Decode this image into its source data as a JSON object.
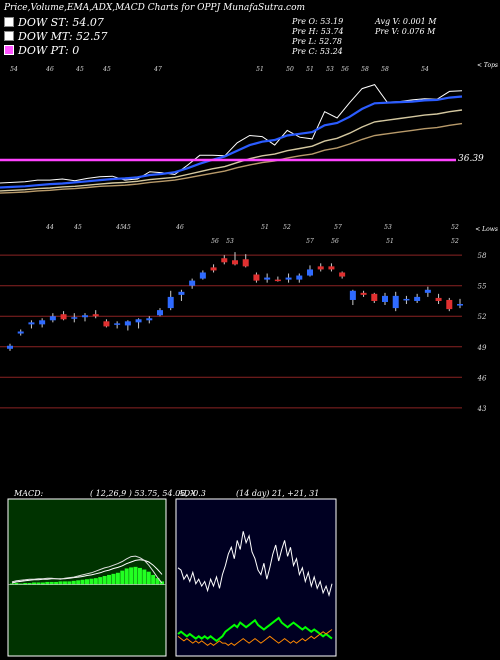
{
  "header": {
    "title": "Price,Volume,EMA,ADX,MACD Charts for OPPJ MunafaSutra.com",
    "dow_st": "DOW ST: 54.07",
    "dow_mt": "DOW MT: 52.57",
    "dow_pt": "DOW PT: 0",
    "pre_o": "Pre   O: 53.19",
    "pre_h": "Pre   H: 53.74",
    "pre_l": "Pre   L: 52.78",
    "pre_c": "Pre   C: 53.24",
    "avg_v": "Avg V: 0.001 M",
    "pre_v": "Pre   V: 0.076  M",
    "colors": {
      "dow_st": "#ffffff",
      "dow_mt": "#ffffff",
      "dow_pt": "#ff55ff"
    }
  },
  "ema_panel": {
    "corner_label": "< Tops",
    "price_label": "36.39",
    "top_labels": [
      "54",
      "46",
      "45",
      "45",
      "47",
      "51",
      "50",
      "51",
      "53",
      "56",
      "58",
      "58",
      "54"
    ],
    "bottom_labels": [
      "44",
      "45",
      "45",
      "45",
      "46",
      "51",
      "52",
      "57",
      "53",
      "52"
    ]
  },
  "price_panel": {
    "corner_label": "< Lows",
    "top_labels": [
      "56",
      "53",
      "57",
      "56",
      "51",
      "52"
    ]
  },
  "macd_panel": {
    "label": "MACD:",
    "params": "( 12,26,9 ) 53.75, 54.05, -0.3"
  },
  "adx_panel": {
    "label": "ADX",
    "params": "(14 day) 21, +21, 31"
  },
  "chart_data": [
    {
      "type": "line",
      "panel": "ema",
      "x_count": 38,
      "series": [
        {
          "values": [
            36.9,
            37,
            37.1,
            37.4,
            37.4,
            37.6,
            37.3,
            37.7,
            38,
            38.1,
            37.4,
            37.6,
            38.9,
            38.7,
            38.4,
            40,
            41.8,
            41.8,
            41.7,
            44,
            45.3,
            45.1,
            43.6,
            46.2,
            45,
            44.7,
            49.5,
            48.4,
            51.1,
            53.6,
            54.3,
            51.2,
            51.3,
            51.6,
            51.8,
            51.7,
            53.1,
            53.2
          ]
        },
        {
          "values": [
            36.1,
            36.2,
            36.3,
            36.5,
            36.7,
            36.8,
            37,
            37.2,
            37.4,
            37.6,
            37.7,
            37.9,
            38.3,
            38.5,
            38.8,
            39.5,
            40.3,
            41,
            41.6,
            42.6,
            43.6,
            44.2,
            44.5,
            45.3,
            45.6,
            45.9,
            47.1,
            47.5,
            48.6,
            50,
            51,
            51.1,
            51.2,
            51.3,
            51.5,
            51.6,
            52,
            52.2
          ]
        },
        {
          "values": [
            35.5,
            35.6,
            35.7,
            35.9,
            36,
            36.2,
            36.3,
            36.5,
            36.7,
            36.9,
            37,
            37.2,
            37.5,
            37.7,
            37.9,
            38.4,
            38.9,
            39.4,
            39.8,
            40.5,
            41.2,
            41.7,
            42,
            42.6,
            43,
            43.4,
            44.3,
            44.8,
            45.7,
            46.8,
            47.7,
            48,
            48.3,
            48.6,
            48.9,
            49.1,
            49.5,
            49.8
          ]
        },
        {
          "values": [
            35.1,
            35.2,
            35.3,
            35.5,
            35.6,
            35.8,
            35.9,
            36.1,
            36.3,
            36.4,
            36.5,
            36.7,
            37,
            37.2,
            37.4,
            37.8,
            38.2,
            38.6,
            39,
            39.6,
            40.1,
            40.5,
            40.8,
            41.3,
            41.7,
            42,
            42.7,
            43.1,
            43.8,
            44.6,
            45.3,
            45.6,
            45.9,
            46.2,
            46.5,
            46.7,
            47.1,
            47.4
          ]
        }
      ]
    },
    {
      "type": "candlestick",
      "panel": "price",
      "ylim": [
        42,
        59
      ],
      "y_ticks": [
        58,
        55,
        52,
        49,
        46,
        43
      ],
      "candles": [
        {
          "o": 48.8,
          "h": 49.3,
          "l": 48.6,
          "c": 49.1
        },
        {
          "o": 50.3,
          "h": 50.7,
          "l": 50.1,
          "c": 50.5
        },
        {
          "o": 51.2,
          "h": 51.6,
          "l": 50.8,
          "c": 51.4
        },
        {
          "o": 51.2,
          "h": 51.8,
          "l": 50.9,
          "c": 51.6
        },
        {
          "o": 51.6,
          "h": 52.3,
          "l": 51.4,
          "c": 52.0
        },
        {
          "o": 52.2,
          "h": 52.5,
          "l": 51.6,
          "c": 51.7
        },
        {
          "o": 51.8,
          "h": 52.3,
          "l": 51.4,
          "c": 51.9
        },
        {
          "o": 51.9,
          "h": 52.3,
          "l": 51.5,
          "c": 52.1
        },
        {
          "o": 52.2,
          "h": 52.6,
          "l": 51.8,
          "c": 52.0
        },
        {
          "o": 51.5,
          "h": 51.7,
          "l": 50.9,
          "c": 51.0
        },
        {
          "o": 51.2,
          "h": 51.5,
          "l": 50.8,
          "c": 51.3
        },
        {
          "o": 51.1,
          "h": 51.6,
          "l": 50.6,
          "c": 51.5
        },
        {
          "o": 51.4,
          "h": 51.8,
          "l": 50.8,
          "c": 51.7
        },
        {
          "o": 51.6,
          "h": 52.0,
          "l": 51.3,
          "c": 51.8
        },
        {
          "o": 52.1,
          "h": 52.8,
          "l": 52.0,
          "c": 52.6
        },
        {
          "o": 52.8,
          "h": 54.5,
          "l": 52.6,
          "c": 53.9
        },
        {
          "o": 54.1,
          "h": 54.6,
          "l": 53.5,
          "c": 54.4
        },
        {
          "o": 55.0,
          "h": 55.7,
          "l": 54.7,
          "c": 55.5
        },
        {
          "o": 55.7,
          "h": 56.5,
          "l": 55.6,
          "c": 56.3
        },
        {
          "o": 56.8,
          "h": 57.1,
          "l": 56.3,
          "c": 56.5
        },
        {
          "o": 57.7,
          "h": 58.0,
          "l": 57.1,
          "c": 57.3
        },
        {
          "o": 57.5,
          "h": 58.3,
          "l": 57.0,
          "c": 57.1
        },
        {
          "o": 57.6,
          "h": 58.1,
          "l": 56.8,
          "c": 56.9
        },
        {
          "o": 56.1,
          "h": 56.3,
          "l": 55.3,
          "c": 55.5
        },
        {
          "o": 55.6,
          "h": 56.2,
          "l": 55.3,
          "c": 55.8
        },
        {
          "o": 55.6,
          "h": 55.9,
          "l": 55.4,
          "c": 55.5
        },
        {
          "o": 55.6,
          "h": 56.2,
          "l": 55.3,
          "c": 55.8
        },
        {
          "o": 55.6,
          "h": 56.2,
          "l": 55.3,
          "c": 56.0
        },
        {
          "o": 56.0,
          "h": 57.0,
          "l": 55.9,
          "c": 56.6
        },
        {
          "o": 56.9,
          "h": 57.2,
          "l": 56.4,
          "c": 56.6
        },
        {
          "o": 56.9,
          "h": 57.2,
          "l": 56.4,
          "c": 56.6
        },
        {
          "o": 56.3,
          "h": 56.4,
          "l": 55.7,
          "c": 55.9
        },
        {
          "o": 53.6,
          "h": 54.6,
          "l": 53.1,
          "c": 54.5
        },
        {
          "o": 54.3,
          "h": 54.5,
          "l": 53.9,
          "c": 54.1
        },
        {
          "o": 54.2,
          "h": 54.3,
          "l": 53.3,
          "c": 53.5
        },
        {
          "o": 53.4,
          "h": 54.3,
          "l": 53.1,
          "c": 54.0
        },
        {
          "o": 52.8,
          "h": 54.4,
          "l": 52.5,
          "c": 54.0
        },
        {
          "o": 53.6,
          "h": 54.0,
          "l": 53.2,
          "c": 53.7
        },
        {
          "o": 53.5,
          "h": 54.2,
          "l": 53.3,
          "c": 53.9
        },
        {
          "o": 54.3,
          "h": 54.9,
          "l": 53.9,
          "c": 54.6
        },
        {
          "o": 53.8,
          "h": 54.2,
          "l": 53.2,
          "c": 53.5
        },
        {
          "o": 53.6,
          "h": 53.8,
          "l": 52.5,
          "c": 52.7
        },
        {
          "o": 53.2,
          "h": 53.7,
          "l": 52.8,
          "c": 53.2
        }
      ]
    },
    {
      "type": "area",
      "panel": "macd",
      "hist": [
        0.2,
        0.3,
        0.2,
        0.3,
        0.3,
        0.4,
        0.4,
        0.4,
        0.5,
        0.5,
        0.5,
        0.6,
        0.6,
        0.6,
        0.7,
        0.8,
        0.9,
        1.0,
        1.1,
        1.2,
        1.4,
        1.6,
        1.8,
        2.0,
        2.2,
        2.6,
        3.0,
        3.2,
        3.3,
        3.1,
        2.8,
        2.4,
        1.8,
        1.2,
        0.6
      ],
      "macd": [
        0.5,
        0.7,
        0.8,
        0.9,
        1.0,
        1.0,
        1.1,
        1.1,
        1.2,
        1.2,
        1.1,
        1.0,
        1.2,
        1.3,
        1.4,
        1.6,
        1.8,
        2.0,
        2.2,
        2.5,
        2.8,
        3.1,
        3.3,
        3.6,
        3.9,
        4.3,
        4.8,
        5.2,
        5.3,
        5.0,
        4.5,
        3.6,
        2.5,
        1.3,
        0.3
      ],
      "signal": [
        0.3,
        0.5,
        0.6,
        0.7,
        0.8,
        0.9,
        0.9,
        1.0,
        1.0,
        1.1,
        1.1,
        1.1,
        1.1,
        1.2,
        1.3,
        1.4,
        1.5,
        1.7,
        1.8,
        2.0,
        2.2,
        2.5,
        2.7,
        3.0,
        3.2,
        3.5,
        3.9,
        4.2,
        4.5,
        4.6,
        4.5,
        4.2,
        3.6,
        2.8,
        1.9
      ],
      "ylim": [
        -1,
        12
      ]
    },
    {
      "type": "line",
      "panel": "adx",
      "series": [
        {
          "color": "#ffffff",
          "values": [
            36,
            35,
            31,
            33,
            30,
            34,
            29,
            31,
            28,
            30,
            26,
            31,
            28,
            32,
            27,
            33,
            37,
            42,
            45,
            40,
            48,
            44,
            52,
            47,
            50,
            43,
            40,
            35,
            33,
            38,
            31,
            36,
            42,
            46,
            39,
            44,
            48,
            41,
            45,
            37,
            40,
            33,
            36,
            30,
            34,
            28,
            32,
            27,
            30,
            25,
            28,
            24,
            29
          ]
        },
        {
          "color": "#00ff00",
          "values": [
            7,
            8,
            7,
            6,
            7,
            6,
            5,
            6,
            5,
            6,
            5,
            6,
            5,
            4,
            5,
            6,
            8,
            9,
            10,
            11,
            10,
            12,
            11,
            10,
            11,
            12,
            13,
            11,
            10,
            9,
            10,
            11,
            12,
            13,
            14,
            12,
            11,
            10,
            11,
            12,
            11,
            10,
            9,
            10,
            9,
            8,
            9,
            8,
            7,
            6,
            7,
            6,
            5
          ]
        },
        {
          "color": "#ff8800",
          "values": [
            6,
            5,
            4,
            5,
            4,
            3,
            4,
            3,
            4,
            3,
            2,
            3,
            2,
            3,
            4,
            3,
            3,
            2,
            3,
            2,
            3,
            4,
            5,
            4,
            3,
            4,
            5,
            4,
            3,
            4,
            5,
            6,
            5,
            4,
            3,
            4,
            5,
            4,
            3,
            4,
            3,
            4,
            5,
            4,
            5,
            6,
            5,
            6,
            7,
            8,
            7,
            8,
            9
          ]
        }
      ],
      "ylim": [
        0,
        60
      ]
    }
  ]
}
